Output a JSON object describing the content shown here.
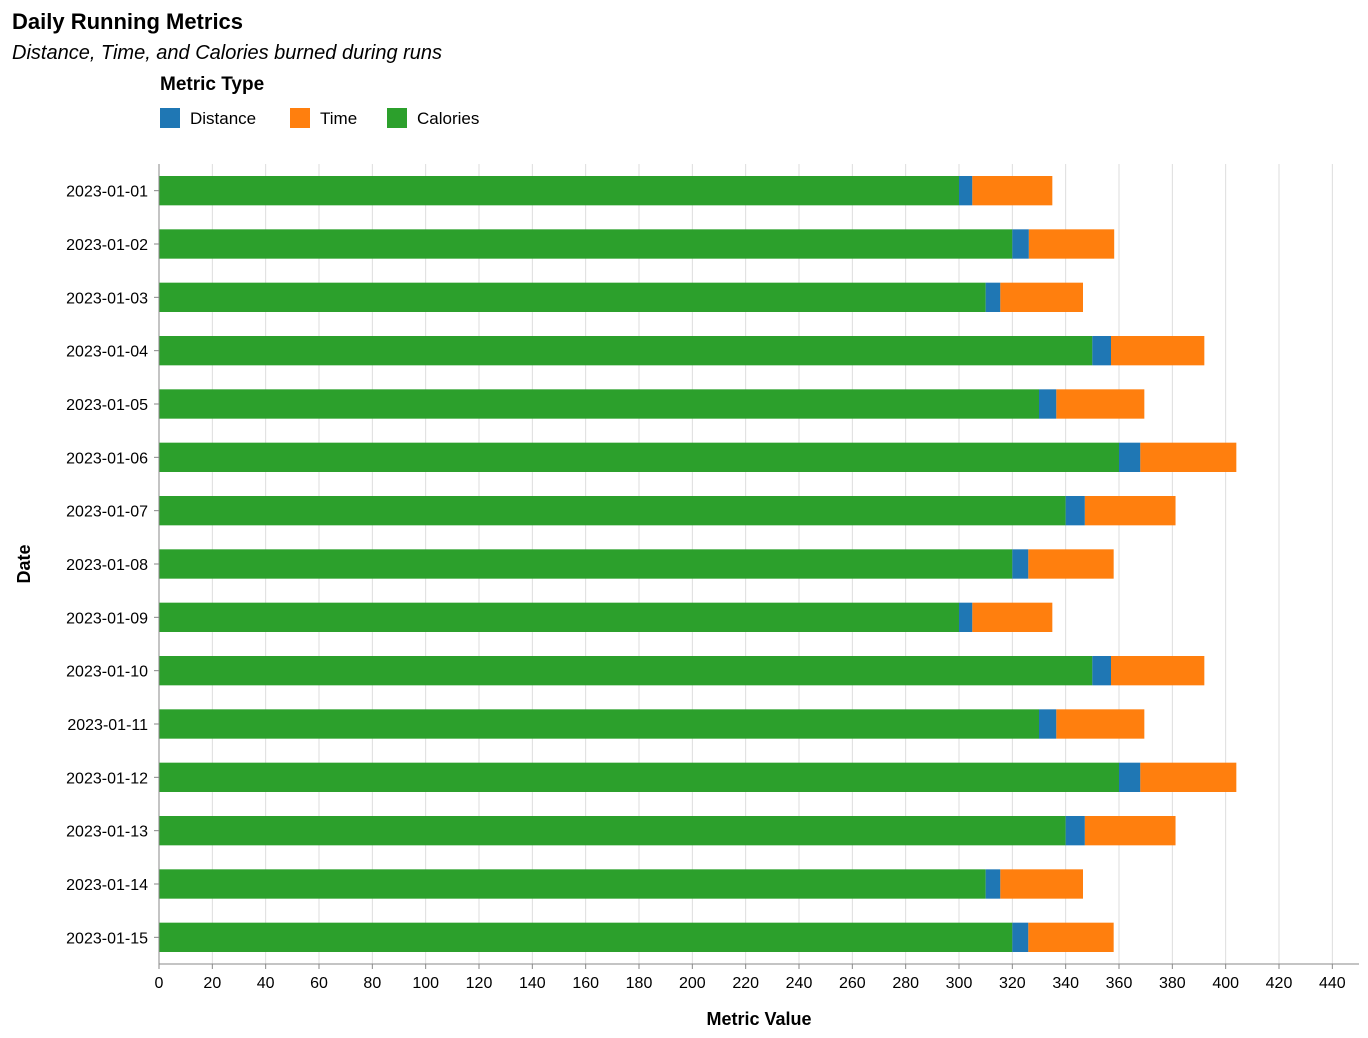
{
  "chart_data": {
    "type": "bar",
    "orientation": "horizontal",
    "stacked": true,
    "title": "Daily Running Metrics",
    "subtitle": "Distance, Time, and Calories burned during runs",
    "xlabel": "Metric Value",
    "ylabel": "Date",
    "xlim": [
      0,
      450
    ],
    "x_ticks": [
      0,
      20,
      40,
      60,
      80,
      100,
      120,
      140,
      160,
      180,
      200,
      220,
      240,
      260,
      280,
      300,
      320,
      340,
      360,
      380,
      400,
      420,
      440
    ],
    "grid": true,
    "legend": {
      "title": "Metric Type",
      "placement": "top-left"
    },
    "categories": [
      "2023-01-01",
      "2023-01-02",
      "2023-01-03",
      "2023-01-04",
      "2023-01-05",
      "2023-01-06",
      "2023-01-07",
      "2023-01-08",
      "2023-01-09",
      "2023-01-10",
      "2023-01-11",
      "2023-01-12",
      "2023-01-13",
      "2023-01-14",
      "2023-01-15"
    ],
    "stack_order": [
      "Calories",
      "Distance",
      "Time"
    ],
    "series": [
      {
        "name": "Distance",
        "color": "#1f77b4",
        "values": [
          5.0,
          6.2,
          5.5,
          7.0,
          6.5,
          8.0,
          7.2,
          6.0,
          5.0,
          7.0,
          6.5,
          8.0,
          7.2,
          5.5,
          6.0
        ]
      },
      {
        "name": "Time",
        "color": "#ff7f0e",
        "values": [
          30,
          32,
          31,
          35,
          33,
          36,
          34,
          32,
          30,
          35,
          33,
          36,
          34,
          31,
          32
        ]
      },
      {
        "name": "Calories",
        "color": "#2ca02c",
        "values": [
          300,
          320,
          310,
          350,
          330,
          360,
          340,
          320,
          300,
          350,
          330,
          360,
          340,
          310,
          320
        ]
      }
    ]
  }
}
